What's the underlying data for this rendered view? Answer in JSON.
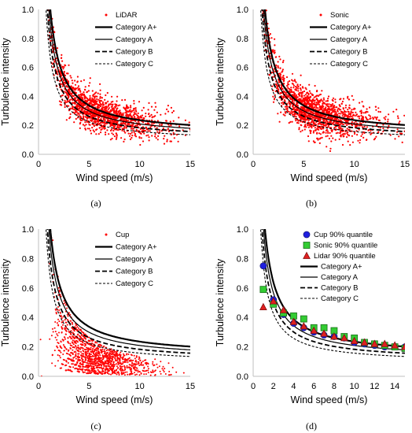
{
  "chart_data": [
    {
      "id": "a",
      "type": "scatter",
      "caption": "(a)",
      "xlabel": "Wind speed (m/s)",
      "ylabel": "Turbulence intensity",
      "xlim": [
        0,
        15
      ],
      "ylim": [
        0,
        1.0
      ],
      "xticks": [
        "0",
        "5",
        "10",
        "15"
      ],
      "yticks": [
        "0.0",
        "0.2",
        "0.4",
        "0.6",
        "0.8",
        "1.0"
      ],
      "legend_position": "top-right",
      "scatter": {
        "name": "LiDAR",
        "color": "#ff0000",
        "pattern": "diffuse",
        "count": 1500,
        "x_range": [
          0.5,
          15
        ],
        "ti_median_a": 0.9,
        "ti_median_b": 0.13,
        "spread": 0.08,
        "seed": 11
      },
      "curves": [
        {
          "name": "Category A+",
          "I_ref": 0.18
        },
        {
          "name": "Category A",
          "I_ref": 0.16
        },
        {
          "name": "Category B",
          "I_ref": 0.14
        },
        {
          "name": "Category C",
          "I_ref": 0.12
        }
      ]
    },
    {
      "id": "b",
      "type": "scatter",
      "caption": "(b)",
      "xlabel": "Wind speed (m/s)",
      "ylabel": "Turbulence intensity",
      "xlim": [
        0,
        15
      ],
      "ylim": [
        0,
        1.0
      ],
      "xticks": [
        "0",
        "5",
        "10",
        "15"
      ],
      "yticks": [
        "0.0",
        "0.2",
        "0.4",
        "0.6",
        "0.8",
        "1.0"
      ],
      "legend_position": "top-right",
      "scatter": {
        "name": "Sonic",
        "color": "#ff0000",
        "pattern": "diffuse",
        "count": 1600,
        "x_range": [
          0.5,
          15
        ],
        "ti_median_a": 0.95,
        "ti_median_b": 0.13,
        "spread": 0.085,
        "seed": 23
      },
      "curves": [
        {
          "name": "Category A+",
          "I_ref": 0.18
        },
        {
          "name": "Category A",
          "I_ref": 0.16
        },
        {
          "name": "Category B",
          "I_ref": 0.14
        },
        {
          "name": "Category C",
          "I_ref": 0.12
        }
      ]
    },
    {
      "id": "c",
      "type": "scatter",
      "caption": "(c)",
      "xlabel": "Wind speed (m/s)",
      "ylabel": "Turbulence intensity",
      "xlim": [
        0,
        15
      ],
      "ylim": [
        0,
        1.0
      ],
      "xticks": [
        "0",
        "5",
        "10",
        "15"
      ],
      "yticks": [
        "0.0",
        "0.2",
        "0.4",
        "0.6",
        "0.8",
        "1.0"
      ],
      "legend_position": "top-right",
      "scatter": {
        "name": "Cup",
        "color": "#ff0000",
        "pattern": "banded",
        "count": 1300,
        "x_range": [
          0.3,
          15
        ],
        "bands": [
          0.12,
          0.2,
          0.28,
          0.36,
          0.44,
          0.52,
          0.6,
          0.68,
          0.76,
          0.84,
          0.92,
          1.0,
          1.1,
          1.2,
          1.3
        ],
        "seed": 37
      },
      "curves": [
        {
          "name": "Category A+",
          "I_ref": 0.18
        },
        {
          "name": "Category A",
          "I_ref": 0.16
        },
        {
          "name": "Category B",
          "I_ref": 0.14
        },
        {
          "name": "Category C",
          "I_ref": 0.12
        }
      ]
    },
    {
      "id": "d",
      "type": "scatter",
      "caption": "(d)",
      "xlabel": "Wind speed (m/s)",
      "ylabel": "Turbulence intensity",
      "xlim": [
        0,
        15
      ],
      "ylim": [
        0,
        1.0
      ],
      "xticks": [
        "0",
        "2",
        "4",
        "6",
        "8",
        "10",
        "12",
        "14"
      ],
      "yticks": [
        "0.0",
        "0.2",
        "0.4",
        "0.6",
        "0.8",
        "1.0"
      ],
      "legend_position": "top-right",
      "series": [
        {
          "name": "Cup 90% quantile",
          "marker": "circle",
          "color": "#1f1fe0",
          "x": [
            1,
            2,
            3,
            4,
            5,
            6,
            7,
            8,
            9,
            10,
            11,
            12,
            13,
            14,
            15
          ],
          "y": [
            0.75,
            0.52,
            0.42,
            0.36,
            0.33,
            0.3,
            0.28,
            0.27,
            0.26,
            0.23,
            0.22,
            0.21,
            0.2,
            0.2,
            0.2
          ]
        },
        {
          "name": "Sonic 90% quantile",
          "marker": "square",
          "color": "#33cc33",
          "x": [
            1,
            2,
            3,
            4,
            5,
            6,
            7,
            8,
            9,
            10,
            11,
            12,
            13,
            14,
            15
          ],
          "y": [
            0.59,
            0.49,
            0.43,
            0.41,
            0.39,
            0.33,
            0.33,
            0.31,
            0.27,
            0.26,
            0.23,
            0.22,
            0.21,
            0.2,
            0.19
          ]
        },
        {
          "name": "Lidar 90% quantile",
          "marker": "triangle",
          "color": "#e02020",
          "x": [
            1,
            2,
            3,
            4,
            5,
            6,
            7,
            8,
            9,
            10,
            11,
            12,
            13,
            14,
            15
          ],
          "y": [
            0.47,
            0.51,
            0.45,
            0.37,
            0.34,
            0.31,
            0.29,
            0.27,
            0.26,
            0.24,
            0.23,
            0.22,
            0.22,
            0.21,
            0.2
          ]
        }
      ],
      "curves": [
        {
          "name": "Category A+",
          "I_ref": 0.18
        },
        {
          "name": "Category A",
          "I_ref": 0.16
        },
        {
          "name": "Category B",
          "I_ref": 0.14
        },
        {
          "name": "Category C",
          "I_ref": 0.12
        }
      ]
    }
  ]
}
